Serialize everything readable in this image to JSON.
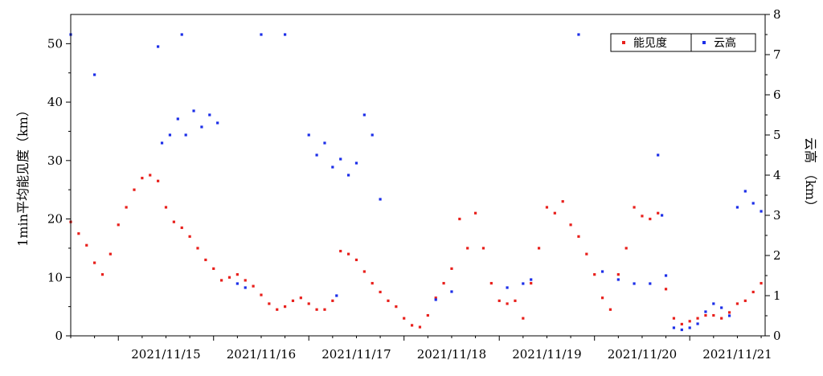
{
  "chart_data": {
    "type": "scatter",
    "x_axis": {
      "start": "2021-11-14 12:00",
      "end": "2021-11-21 19:00",
      "ticks": [
        "2021/11/15",
        "2021/11/16",
        "2021/11/17",
        "2021/11/18",
        "2021/11/19",
        "2021/11/20",
        "2021/11/21"
      ]
    },
    "y_left": {
      "label": "1min平均能见度（km）",
      "range": [
        0,
        55
      ],
      "ticks": [
        "0",
        "10",
        "20",
        "30",
        "40",
        "50"
      ]
    },
    "y_right": {
      "label": "云高 （km）",
      "range": [
        0,
        8
      ],
      "ticks": [
        "0",
        "1",
        "2",
        "3",
        "4",
        "5",
        "6",
        "7",
        "8"
      ]
    },
    "legend": {
      "position": "top-right",
      "items": [
        {
          "name": "能见度",
          "color": "#e8201c"
        },
        {
          "name": "云高",
          "color": "#1c2ee8"
        }
      ]
    },
    "series": [
      {
        "name": "能见度",
        "axis": "left",
        "color": "#e8201c",
        "points": [
          [
            "2021-11-14 12:00",
            19.5
          ],
          [
            "2021-11-14 14:00",
            17.5
          ],
          [
            "2021-11-14 16:00",
            15.5
          ],
          [
            "2021-11-14 18:00",
            12.5
          ],
          [
            "2021-11-14 20:00",
            10.5
          ],
          [
            "2021-11-14 22:00",
            14.0
          ],
          [
            "2021-11-15 00:00",
            19.0
          ],
          [
            "2021-11-15 02:00",
            22.0
          ],
          [
            "2021-11-15 04:00",
            25.0
          ],
          [
            "2021-11-15 06:00",
            27.0
          ],
          [
            "2021-11-15 08:00",
            27.5
          ],
          [
            "2021-11-15 10:00",
            26.5
          ],
          [
            "2021-11-15 12:00",
            22.0
          ],
          [
            "2021-11-15 14:00",
            19.5
          ],
          [
            "2021-11-15 16:00",
            18.5
          ],
          [
            "2021-11-15 18:00",
            17.0
          ],
          [
            "2021-11-15 20:00",
            15.0
          ],
          [
            "2021-11-15 22:00",
            13.0
          ],
          [
            "2021-11-16 00:00",
            11.5
          ],
          [
            "2021-11-16 02:00",
            9.5
          ],
          [
            "2021-11-16 04:00",
            10.0
          ],
          [
            "2021-11-16 06:00",
            10.5
          ],
          [
            "2021-11-16 08:00",
            9.5
          ],
          [
            "2021-11-16 10:00",
            8.5
          ],
          [
            "2021-11-16 12:00",
            7.0
          ],
          [
            "2021-11-16 14:00",
            5.5
          ],
          [
            "2021-11-16 16:00",
            4.5
          ],
          [
            "2021-11-16 18:00",
            5.0
          ],
          [
            "2021-11-16 20:00",
            6.0
          ],
          [
            "2021-11-16 22:00",
            6.5
          ],
          [
            "2021-11-17 00:00",
            5.5
          ],
          [
            "2021-11-17 02:00",
            4.5
          ],
          [
            "2021-11-17 04:00",
            4.5
          ],
          [
            "2021-11-17 06:00",
            6.0
          ],
          [
            "2021-11-17 08:00",
            14.5
          ],
          [
            "2021-11-17 10:00",
            14.0
          ],
          [
            "2021-11-17 12:00",
            13.0
          ],
          [
            "2021-11-17 14:00",
            11.0
          ],
          [
            "2021-11-17 16:00",
            9.0
          ],
          [
            "2021-11-17 18:00",
            7.5
          ],
          [
            "2021-11-17 20:00",
            6.0
          ],
          [
            "2021-11-17 22:00",
            5.0
          ],
          [
            "2021-11-18 00:00",
            3.0
          ],
          [
            "2021-11-18 02:00",
            1.8
          ],
          [
            "2021-11-18 04:00",
            1.5
          ],
          [
            "2021-11-18 06:00",
            3.5
          ],
          [
            "2021-11-18 08:00",
            6.5
          ],
          [
            "2021-11-18 10:00",
            9.0
          ],
          [
            "2021-11-18 12:00",
            11.5
          ],
          [
            "2021-11-18 14:00",
            20.0
          ],
          [
            "2021-11-18 16:00",
            15.0
          ],
          [
            "2021-11-18 18:00",
            21.0
          ],
          [
            "2021-11-18 20:00",
            15.0
          ],
          [
            "2021-11-18 22:00",
            9.0
          ],
          [
            "2021-11-19 00:00",
            6.0
          ],
          [
            "2021-11-19 02:00",
            5.5
          ],
          [
            "2021-11-19 04:00",
            6.0
          ],
          [
            "2021-11-19 06:00",
            3.0
          ],
          [
            "2021-11-19 08:00",
            9.0
          ],
          [
            "2021-11-19 10:00",
            15.0
          ],
          [
            "2021-11-19 12:00",
            22.0
          ],
          [
            "2021-11-19 14:00",
            21.0
          ],
          [
            "2021-11-19 16:00",
            23.0
          ],
          [
            "2021-11-19 18:00",
            19.0
          ],
          [
            "2021-11-19 20:00",
            17.0
          ],
          [
            "2021-11-19 22:00",
            14.0
          ],
          [
            "2021-11-20 00:00",
            10.5
          ],
          [
            "2021-11-20 02:00",
            6.5
          ],
          [
            "2021-11-20 04:00",
            4.5
          ],
          [
            "2021-11-20 06:00",
            10.5
          ],
          [
            "2021-11-20 08:00",
            15.0
          ],
          [
            "2021-11-20 10:00",
            22.0
          ],
          [
            "2021-11-20 12:00",
            20.5
          ],
          [
            "2021-11-20 14:00",
            20.0
          ],
          [
            "2021-11-20 16:00",
            21.0
          ],
          [
            "2021-11-20 18:00",
            8.0
          ],
          [
            "2021-11-20 20:00",
            3.0
          ],
          [
            "2021-11-20 22:00",
            2.0
          ],
          [
            "2021-11-21 00:00",
            2.5
          ],
          [
            "2021-11-21 02:00",
            3.0
          ],
          [
            "2021-11-21 04:00",
            3.5
          ],
          [
            "2021-11-21 06:00",
            3.5
          ],
          [
            "2021-11-21 08:00",
            3.0
          ],
          [
            "2021-11-21 10:00",
            4.0
          ],
          [
            "2021-11-21 12:00",
            5.5
          ],
          [
            "2021-11-21 14:00",
            6.0
          ],
          [
            "2021-11-21 16:00",
            7.5
          ],
          [
            "2021-11-21 18:00",
            9.0
          ]
        ]
      },
      {
        "name": "云高",
        "axis": "right",
        "color": "#1c2ee8",
        "points": [
          [
            "2021-11-14 12:00",
            7.5
          ],
          [
            "2021-11-14 18:00",
            6.5
          ],
          [
            "2021-11-15 10:00",
            7.2
          ],
          [
            "2021-11-15 11:00",
            4.8
          ],
          [
            "2021-11-15 13:00",
            5.0
          ],
          [
            "2021-11-15 15:00",
            5.4
          ],
          [
            "2021-11-15 17:00",
            5.0
          ],
          [
            "2021-11-15 19:00",
            5.6
          ],
          [
            "2021-11-15 21:00",
            5.2
          ],
          [
            "2021-11-15 23:00",
            5.5
          ],
          [
            "2021-11-16 01:00",
            5.3
          ],
          [
            "2021-11-15 16:00",
            7.5
          ],
          [
            "2021-11-16 06:00",
            1.3
          ],
          [
            "2021-11-16 08:00",
            1.2
          ],
          [
            "2021-11-16 12:00",
            7.5
          ],
          [
            "2021-11-16 18:00",
            7.5
          ],
          [
            "2021-11-17 00:00",
            5.0
          ],
          [
            "2021-11-17 02:00",
            4.5
          ],
          [
            "2021-11-17 04:00",
            4.8
          ],
          [
            "2021-11-17 06:00",
            4.2
          ],
          [
            "2021-11-17 08:00",
            4.4
          ],
          [
            "2021-11-17 10:00",
            4.0
          ],
          [
            "2021-11-17 12:00",
            4.3
          ],
          [
            "2021-11-17 14:00",
            5.5
          ],
          [
            "2021-11-17 16:00",
            5.0
          ],
          [
            "2021-11-17 18:00",
            3.4
          ],
          [
            "2021-11-17 07:00",
            1.0
          ],
          [
            "2021-11-18 08:00",
            0.9
          ],
          [
            "2021-11-18 12:00",
            1.1
          ],
          [
            "2021-11-19 02:00",
            1.2
          ],
          [
            "2021-11-19 06:00",
            1.3
          ],
          [
            "2021-11-19 08:00",
            1.4
          ],
          [
            "2021-11-19 20:00",
            7.5
          ],
          [
            "2021-11-20 02:00",
            1.6
          ],
          [
            "2021-11-20 06:00",
            1.4
          ],
          [
            "2021-11-20 10:00",
            1.3
          ],
          [
            "2021-11-20 14:00",
            1.3
          ],
          [
            "2021-11-20 16:00",
            4.5
          ],
          [
            "2021-11-20 17:00",
            3.0
          ],
          [
            "2021-11-20 18:00",
            1.5
          ],
          [
            "2021-11-20 20:00",
            0.2
          ],
          [
            "2021-11-20 22:00",
            0.15
          ],
          [
            "2021-11-21 00:00",
            0.2
          ],
          [
            "2021-11-21 02:00",
            0.3
          ],
          [
            "2021-11-21 04:00",
            0.6
          ],
          [
            "2021-11-21 06:00",
            0.8
          ],
          [
            "2021-11-21 08:00",
            0.7
          ],
          [
            "2021-11-21 10:00",
            0.5
          ],
          [
            "2021-11-21 12:00",
            3.2
          ],
          [
            "2021-11-21 14:00",
            3.6
          ],
          [
            "2021-11-21 16:00",
            3.3
          ],
          [
            "2021-11-21 18:00",
            3.1
          ]
        ]
      }
    ]
  }
}
